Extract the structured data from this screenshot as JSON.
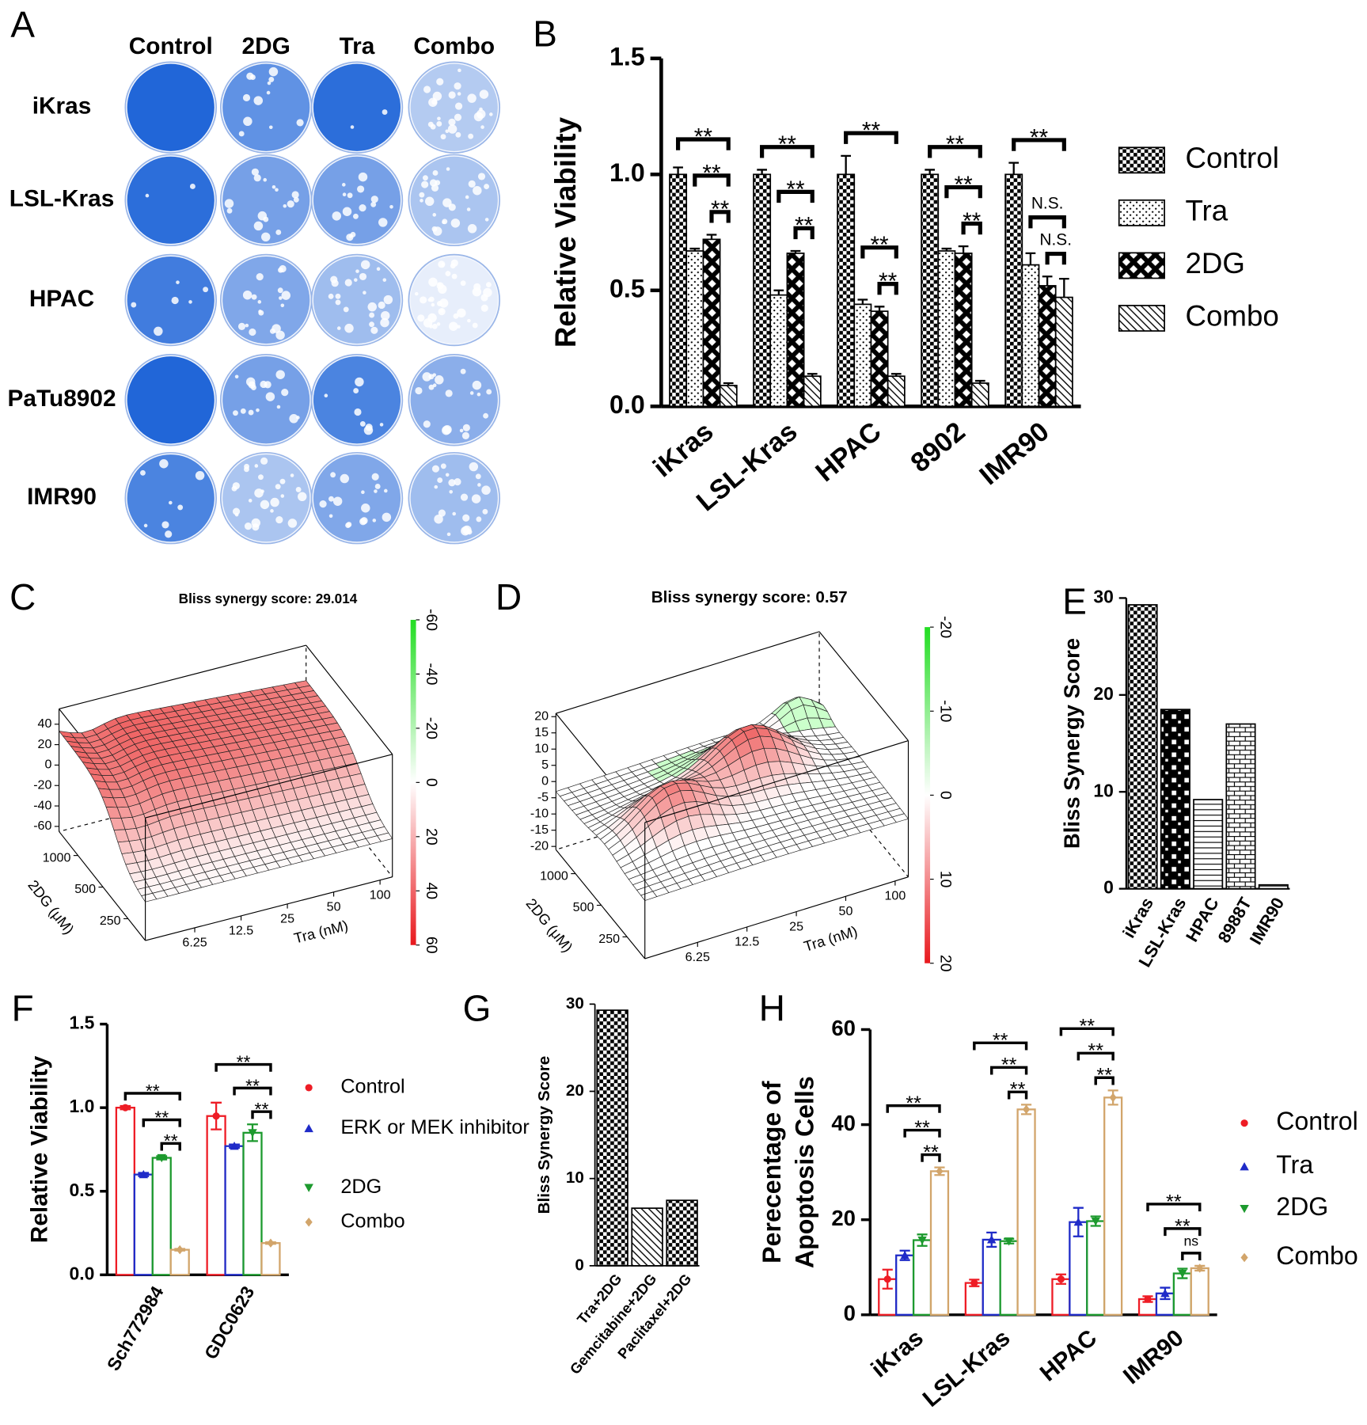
{
  "panel_labels": [
    "A",
    "B",
    "C",
    "D",
    "E",
    "F",
    "G",
    "H"
  ],
  "plates": {
    "columns": [
      "Control",
      "2DG",
      "Tra",
      "Combo"
    ],
    "rows": [
      "iKras",
      "LSL-Kras",
      "HPAC",
      "PaTu8902",
      "IMR90"
    ]
  },
  "chart_data": [
    {
      "type": "bar",
      "ylabel": "Relative Viability",
      "categories": [
        "iKras",
        "LSL-Kras",
        "HPAC",
        "8902",
        "IMR90"
      ],
      "series": [
        {
          "name": "Control",
          "fill": "checker",
          "values": [
            1.0,
            1.0,
            1.0,
            1.0,
            1.0
          ],
          "errors": [
            0.03,
            0.02,
            0.08,
            0.02,
            0.05
          ]
        },
        {
          "name": "Tra",
          "fill": "dots",
          "values": [
            0.67,
            0.48,
            0.44,
            0.67,
            0.61
          ],
          "errors": [
            0.01,
            0.02,
            0.02,
            0.01,
            0.05
          ]
        },
        {
          "name": "2DG",
          "fill": "xcross",
          "values": [
            0.72,
            0.66,
            0.41,
            0.66,
            0.52
          ],
          "errors": [
            0.02,
            0.01,
            0.02,
            0.03,
            0.04
          ]
        },
        {
          "name": "Combo",
          "fill": "diag",
          "values": [
            0.09,
            0.13,
            0.13,
            0.1,
            0.47
          ],
          "errors": [
            0.01,
            0.01,
            0.01,
            0.01,
            0.08
          ]
        }
      ],
      "significance": [
        [
          "**",
          "**",
          "**"
        ],
        [
          "**",
          "**",
          "**"
        ],
        [
          "**",
          "**",
          "**"
        ],
        [
          "**",
          "**",
          "**"
        ],
        [
          "**",
          "N.S.",
          "N.S."
        ]
      ],
      "ylim": [
        0,
        1.5
      ],
      "yticks": [
        {
          "value": 0,
          "label": "0.0"
        },
        0.5,
        {
          "value": 1,
          "label": "1.0"
        },
        1.5
      ],
      "legend": "right"
    },
    {
      "type": "surface",
      "title": "Bliss synergy score: 29.014",
      "xlabel": "Tra (nM)",
      "ylabel": "2DG (μM)",
      "xticks": [
        6.25,
        12.5,
        25,
        50,
        100
      ],
      "yticks": [
        250,
        500,
        1000
      ],
      "xscale": "log",
      "yscale": "log",
      "zlim": [
        -65,
        55
      ],
      "zticks": [
        40,
        20,
        0,
        -20,
        -40,
        -60
      ],
      "colorbar_lim": [
        -60,
        60
      ],
      "colorbar_ticks": [
        -60,
        -40,
        -20,
        0,
        20,
        40,
        60
      ]
    },
    {
      "type": "surface",
      "title": "Bliss synergy score: 0.57",
      "xlabel": "Tra (nM)",
      "ylabel": "2DG (μM)",
      "xticks": [
        6.25,
        12.5,
        25,
        50,
        100
      ],
      "yticks": [
        250,
        500,
        1000
      ],
      "xscale": "log",
      "yscale": "log",
      "zlim": [
        -21,
        21
      ],
      "zticks": [
        20,
        15,
        10,
        5,
        0,
        -5,
        -10,
        -15,
        -20
      ],
      "colorbar_lim": [
        -20,
        20
      ],
      "colorbar_ticks": [
        -20,
        -10,
        0,
        10,
        20
      ]
    },
    {
      "type": "bar",
      "ylabel": "Bliss Synergy Score",
      "categories": [
        "iKras",
        "LSL-Kras",
        "HPAC",
        "8988T",
        "IMR90"
      ],
      "values": [
        29.3,
        18.5,
        9.2,
        17.0,
        0.4
      ],
      "fills": [
        "checker",
        "bigcheck",
        "hlines",
        "brick",
        "hlines"
      ],
      "ylim": [
        0,
        30
      ],
      "yticks": [
        0,
        10,
        20,
        30
      ]
    },
    {
      "type": "bar",
      "ylabel": "Relative Viability",
      "categories": [
        "Sch772984",
        "GDC0623"
      ],
      "series": [
        {
          "name": "Control",
          "color": "#ee1c25",
          "values": [
            1.0,
            0.95
          ],
          "errors": [
            0.01,
            0.08
          ]
        },
        {
          "name": "ERK or MEK inhibitor",
          "color": "#1f2bc8",
          "values": [
            0.6,
            0.77
          ],
          "errors": [
            0.01,
            0.01
          ]
        },
        {
          "name": "2DG",
          "color": "#1d9a2e",
          "values": [
            0.7,
            0.85
          ],
          "errors": [
            0.01,
            0.05
          ]
        },
        {
          "name": "Combo",
          "color": "#d2a56b",
          "values": [
            0.15,
            0.19
          ],
          "errors": [
            0.005,
            0.005
          ]
        }
      ],
      "significance": [
        [
          "**",
          "**",
          "**"
        ],
        [
          "**",
          "**",
          "**"
        ]
      ],
      "ylim": [
        0,
        1.5
      ],
      "yticks": [
        {
          "value": 0,
          "label": "0.0"
        },
        0.5,
        {
          "value": 1,
          "label": "1.0"
        },
        1.5
      ],
      "legend": "right"
    },
    {
      "type": "bar",
      "ylabel": "Bliss Synergy Score",
      "categories": [
        "Tra+2DG",
        "Gemcitabine+2DG",
        "Paclitaxel+2DG"
      ],
      "values": [
        29.3,
        6.6,
        7.5
      ],
      "fills": [
        "checker",
        "diag",
        "checker"
      ],
      "ylim": [
        0,
        30
      ],
      "yticks": [
        0,
        10,
        20,
        30
      ]
    },
    {
      "type": "bar",
      "ylabel": [
        "Perecentage of",
        "Apoptosis Cells"
      ],
      "categories": [
        "iKras",
        "LSL-Kras",
        "HPAC",
        "IMR90"
      ],
      "series": [
        {
          "name": "Control",
          "color": "#ee1c25",
          "values": [
            7.5,
            6.7,
            7.5,
            3.3
          ],
          "errors": [
            2,
            0.7,
            1,
            0.6
          ]
        },
        {
          "name": "Tra",
          "color": "#1f2bc8",
          "values": [
            12.5,
            15.8,
            19.5,
            4.5
          ],
          "errors": [
            1,
            1.5,
            3,
            1.2
          ]
        },
        {
          "name": "2DG",
          "color": "#1d9a2e",
          "values": [
            15.7,
            15.5,
            19.7,
            8.7
          ],
          "errors": [
            1.2,
            0.5,
            1,
            1
          ]
        },
        {
          "name": "Combo",
          "color": "#d2a56b",
          "values": [
            30.2,
            43.2,
            45.7,
            9.8
          ],
          "errors": [
            0.8,
            1,
            1.5,
            0.5
          ]
        }
      ],
      "significance": [
        [
          "**",
          "**",
          "**"
        ],
        [
          "**",
          "**",
          "**"
        ],
        [
          "**",
          "**",
          "**"
        ],
        [
          "**",
          "**",
          "ns"
        ]
      ],
      "ylim": [
        0,
        60
      ],
      "yticks": [
        0,
        20,
        40,
        60
      ],
      "legend": "right"
    }
  ]
}
